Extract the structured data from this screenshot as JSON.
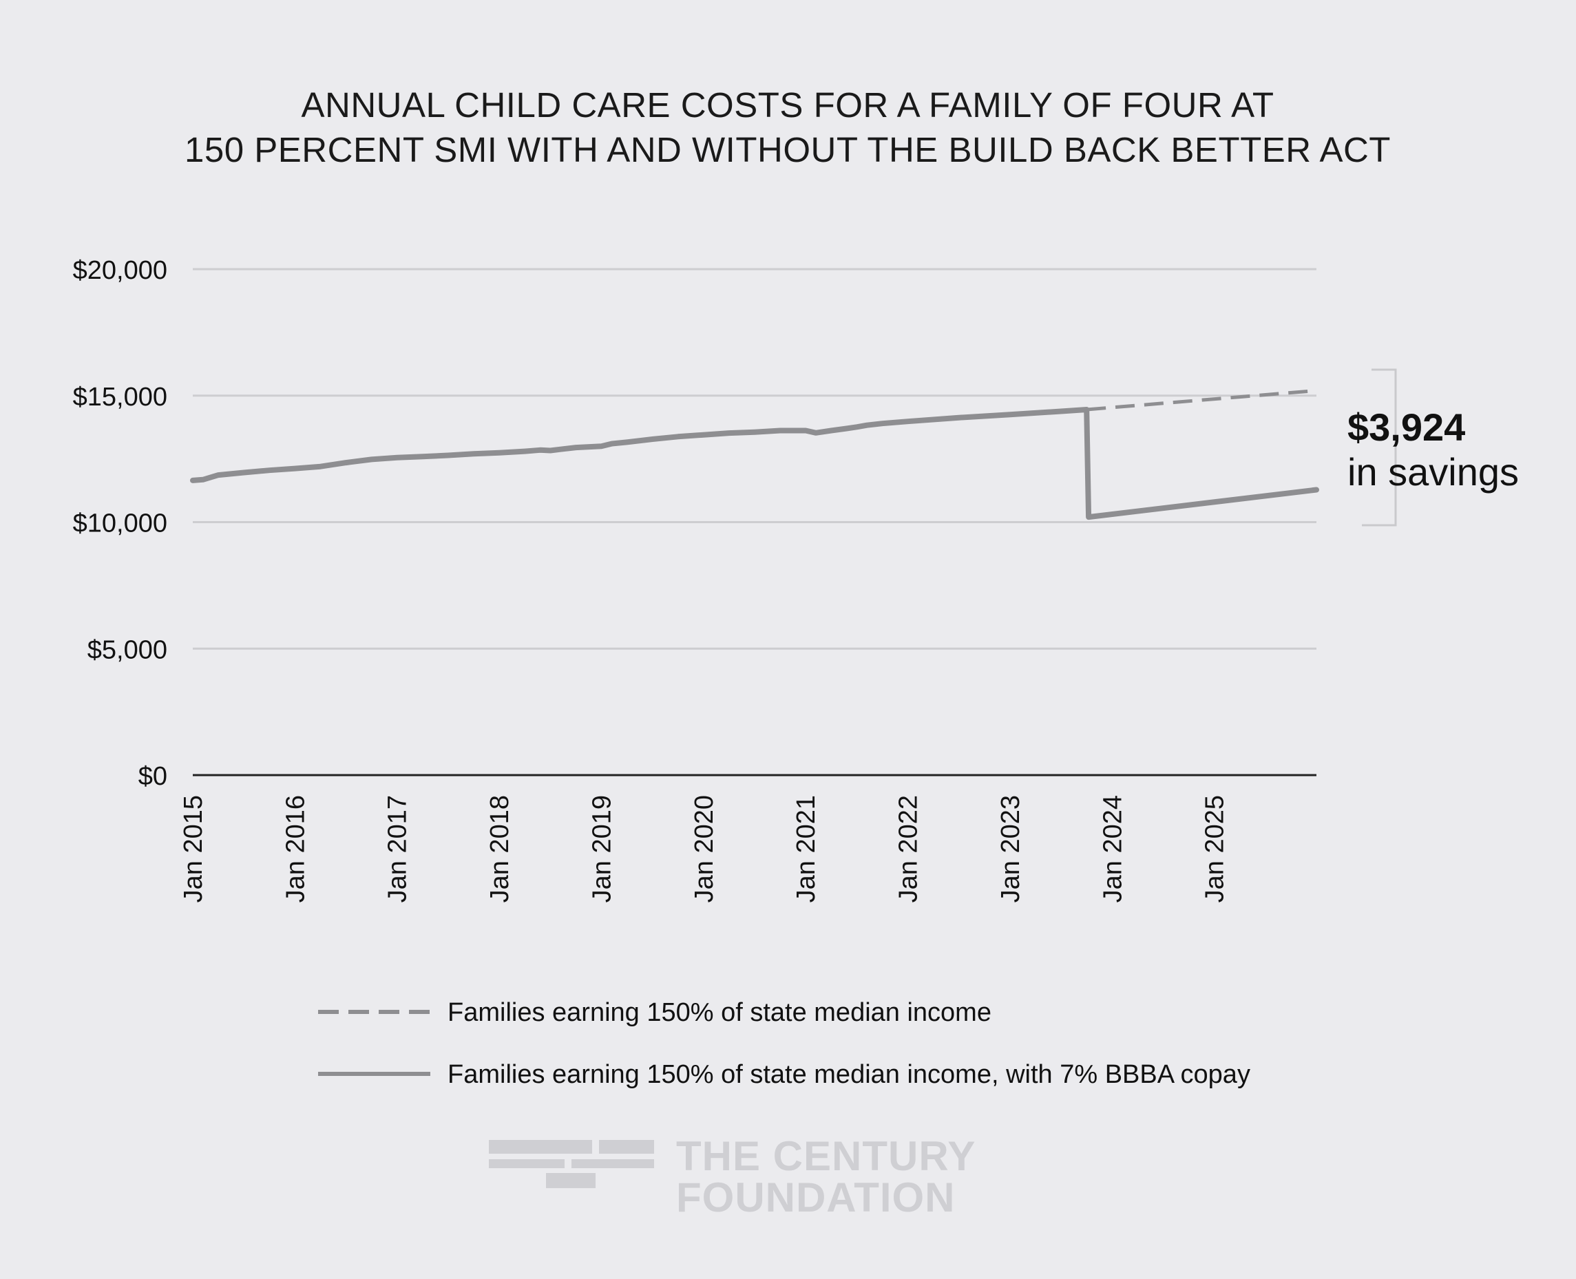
{
  "chart_data": {
    "type": "line",
    "title_lines": [
      "ANNUAL CHILD CARE COSTS FOR A FAMILY OF FOUR AT",
      "150 PERCENT SMI WITH AND WITHOUT THE BUILD BACK BETTER ACT"
    ],
    "ylim": [
      0,
      20000
    ],
    "yticks": [
      0,
      5000,
      10000,
      15000,
      20000
    ],
    "ytick_labels": [
      "$0",
      "$5,000",
      "$10,000",
      "$15,000",
      "$20,000"
    ],
    "xlim": [
      2015.0,
      2026.0
    ],
    "xticks": [
      2015,
      2016,
      2017,
      2018,
      2019,
      2020,
      2021,
      2022,
      2023,
      2024,
      2025
    ],
    "xtick_labels": [
      "Jan 2015",
      "Jan 2016",
      "Jan 2017",
      "Jan 2018",
      "Jan 2019",
      "Jan 2020",
      "Jan 2021",
      "Jan 2022",
      "Jan 2023",
      "Jan 2024",
      "Jan 2025"
    ],
    "series": [
      {
        "name": "Families earning 150% of state median income",
        "style": "dashed",
        "color": "#8e8e91",
        "x": [
          2023.75,
          2024.5,
          2025.25,
          2026.0
        ],
        "y": [
          14450,
          14700,
          14950,
          15200
        ]
      },
      {
        "name": "Families earning 150% of state median income, with 7% BBBA copay",
        "style": "solid",
        "color": "#8e8e91",
        "x": [
          2015.0,
          2015.1,
          2015.25,
          2015.5,
          2015.75,
          2016.0,
          2016.25,
          2016.5,
          2016.75,
          2017.0,
          2017.25,
          2017.5,
          2017.75,
          2018.0,
          2018.25,
          2018.4,
          2018.5,
          2018.6,
          2018.75,
          2019.0,
          2019.1,
          2019.25,
          2019.5,
          2019.75,
          2020.0,
          2020.25,
          2020.5,
          2020.75,
          2021.0,
          2021.1,
          2021.25,
          2021.4,
          2021.5,
          2021.6,
          2021.75,
          2022.0,
          2022.5,
          2023.0,
          2023.5,
          2023.75,
          2023.77,
          2026.0
        ],
        "y": [
          11650,
          11680,
          11860,
          11960,
          12050,
          12120,
          12200,
          12350,
          12480,
          12550,
          12590,
          12640,
          12700,
          12740,
          12800,
          12850,
          12830,
          12880,
          12950,
          13000,
          13100,
          13160,
          13280,
          13380,
          13450,
          13520,
          13560,
          13620,
          13620,
          13530,
          13620,
          13700,
          13760,
          13830,
          13900,
          13980,
          14130,
          14250,
          14380,
          14450,
          10200,
          11280
        ]
      }
    ],
    "annotation": {
      "value": "$3,924",
      "text": "in savings"
    },
    "legend": "bottom"
  },
  "branding": {
    "logo_line1": "THE CENTURY",
    "logo_line2": "FOUNDATION"
  }
}
